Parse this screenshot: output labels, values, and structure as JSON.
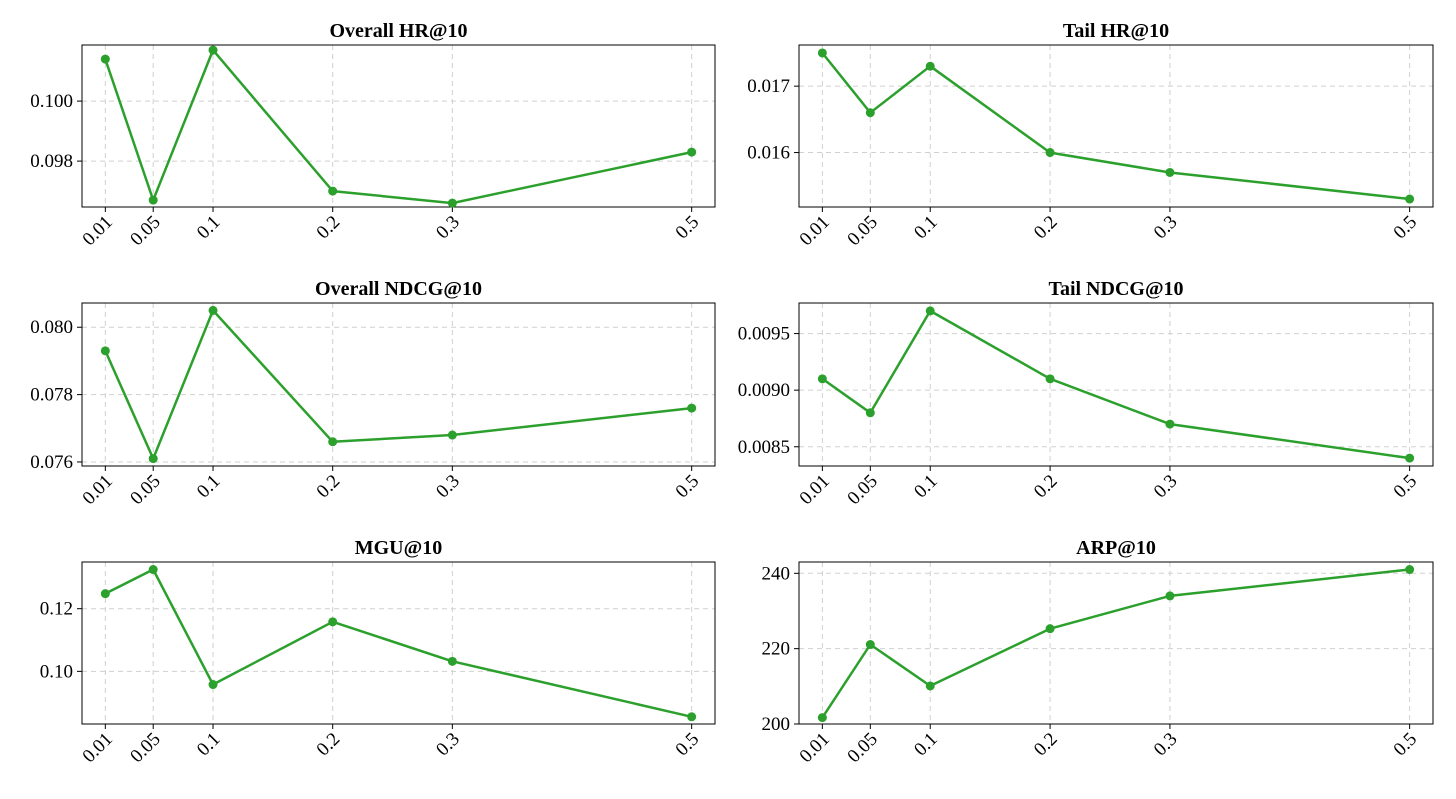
{
  "style": {
    "series_color": "#2ca02c"
  },
  "chart_data": [
    {
      "type": "line",
      "title": "Overall HR@10",
      "xlabel": "",
      "ylabel": "",
      "x": [
        0.01,
        0.05,
        0.1,
        0.2,
        0.3,
        0.5
      ],
      "x_tick_labels": [
        "0.01",
        "0.05",
        "0.1",
        "0.2",
        "0.3",
        "0.5"
      ],
      "y_ticks": [
        0.098,
        0.1
      ],
      "y_tick_labels": [
        "0.098",
        "0.100"
      ],
      "ylim": [
        0.09647,
        0.10187
      ],
      "grid": true,
      "series": [
        {
          "values": [
            0.1014,
            0.0967,
            0.1017,
            0.097,
            0.0966,
            0.0983
          ]
        }
      ]
    },
    {
      "type": "line",
      "title": "Tail HR@10",
      "xlabel": "",
      "ylabel": "",
      "x": [
        0.01,
        0.05,
        0.1,
        0.2,
        0.3,
        0.5
      ],
      "x_tick_labels": [
        "0.01",
        "0.05",
        "0.1",
        "0.2",
        "0.3",
        "0.5"
      ],
      "y_ticks": [
        0.016,
        0.017
      ],
      "y_tick_labels": [
        "0.016",
        "0.017"
      ],
      "ylim": [
        0.01518,
        0.01762
      ],
      "grid": true,
      "series": [
        {
          "values": [
            0.0175,
            0.0166,
            0.0173,
            0.016,
            0.0157,
            0.0153
          ]
        }
      ]
    },
    {
      "type": "line",
      "title": "Overall NDCG@10",
      "xlabel": "",
      "ylabel": "",
      "x": [
        0.01,
        0.05,
        0.1,
        0.2,
        0.3,
        0.5
      ],
      "x_tick_labels": [
        "0.01",
        "0.05",
        "0.1",
        "0.2",
        "0.3",
        "0.5"
      ],
      "y_ticks": [
        0.076,
        0.078,
        0.08
      ],
      "y_tick_labels": [
        "0.076",
        "0.078",
        "0.080"
      ],
      "ylim": [
        0.07588,
        0.08072
      ],
      "grid": true,
      "series": [
        {
          "values": [
            0.0793,
            0.0761,
            0.0805,
            0.0766,
            0.0768,
            0.0776
          ]
        }
      ]
    },
    {
      "type": "line",
      "title": "Tail NDCG@10",
      "xlabel": "",
      "ylabel": "",
      "x": [
        0.01,
        0.05,
        0.1,
        0.2,
        0.3,
        0.5
      ],
      "x_tick_labels": [
        "0.01",
        "0.05",
        "0.1",
        "0.2",
        "0.3",
        "0.5"
      ],
      "y_ticks": [
        0.0085,
        0.009,
        0.0095
      ],
      "y_tick_labels": [
        "0.0085",
        "0.0090",
        "0.0095"
      ],
      "ylim": [
        0.00833,
        0.00977
      ],
      "grid": true,
      "series": [
        {
          "values": [
            0.0091,
            0.0088,
            0.0097,
            0.0091,
            0.0087,
            0.0084
          ]
        }
      ]
    },
    {
      "type": "line",
      "title": "MGU@10",
      "xlabel": "",
      "ylabel": "",
      "x": [
        0.01,
        0.05,
        0.1,
        0.2,
        0.3,
        0.5
      ],
      "x_tick_labels": [
        "0.01",
        "0.05",
        "0.1",
        "0.2",
        "0.3",
        "0.5"
      ],
      "y_ticks": [
        0.1,
        0.12
      ],
      "y_tick_labels": [
        "0.10",
        "0.12"
      ],
      "ylim": [
        0.0832,
        0.1349
      ],
      "grid": true,
      "series": [
        {
          "values": [
            0.1248,
            0.1325,
            0.0958,
            0.1158,
            0.1032,
            0.0855
          ]
        }
      ]
    },
    {
      "type": "line",
      "title": "ARP@10",
      "xlabel": "",
      "ylabel": "",
      "x": [
        0.01,
        0.05,
        0.1,
        0.2,
        0.3,
        0.5
      ],
      "x_tick_labels": [
        "0.01",
        "0.05",
        "0.1",
        "0.2",
        "0.3",
        "0.5"
      ],
      "y_ticks": [
        200,
        220,
        240
      ],
      "y_tick_labels": [
        "200",
        "220",
        "240"
      ],
      "ylim": [
        200,
        243
      ],
      "grid": true,
      "series": [
        {
          "values": [
            201.7,
            221.1,
            210.1,
            225.3,
            234,
            241
          ]
        }
      ]
    }
  ]
}
